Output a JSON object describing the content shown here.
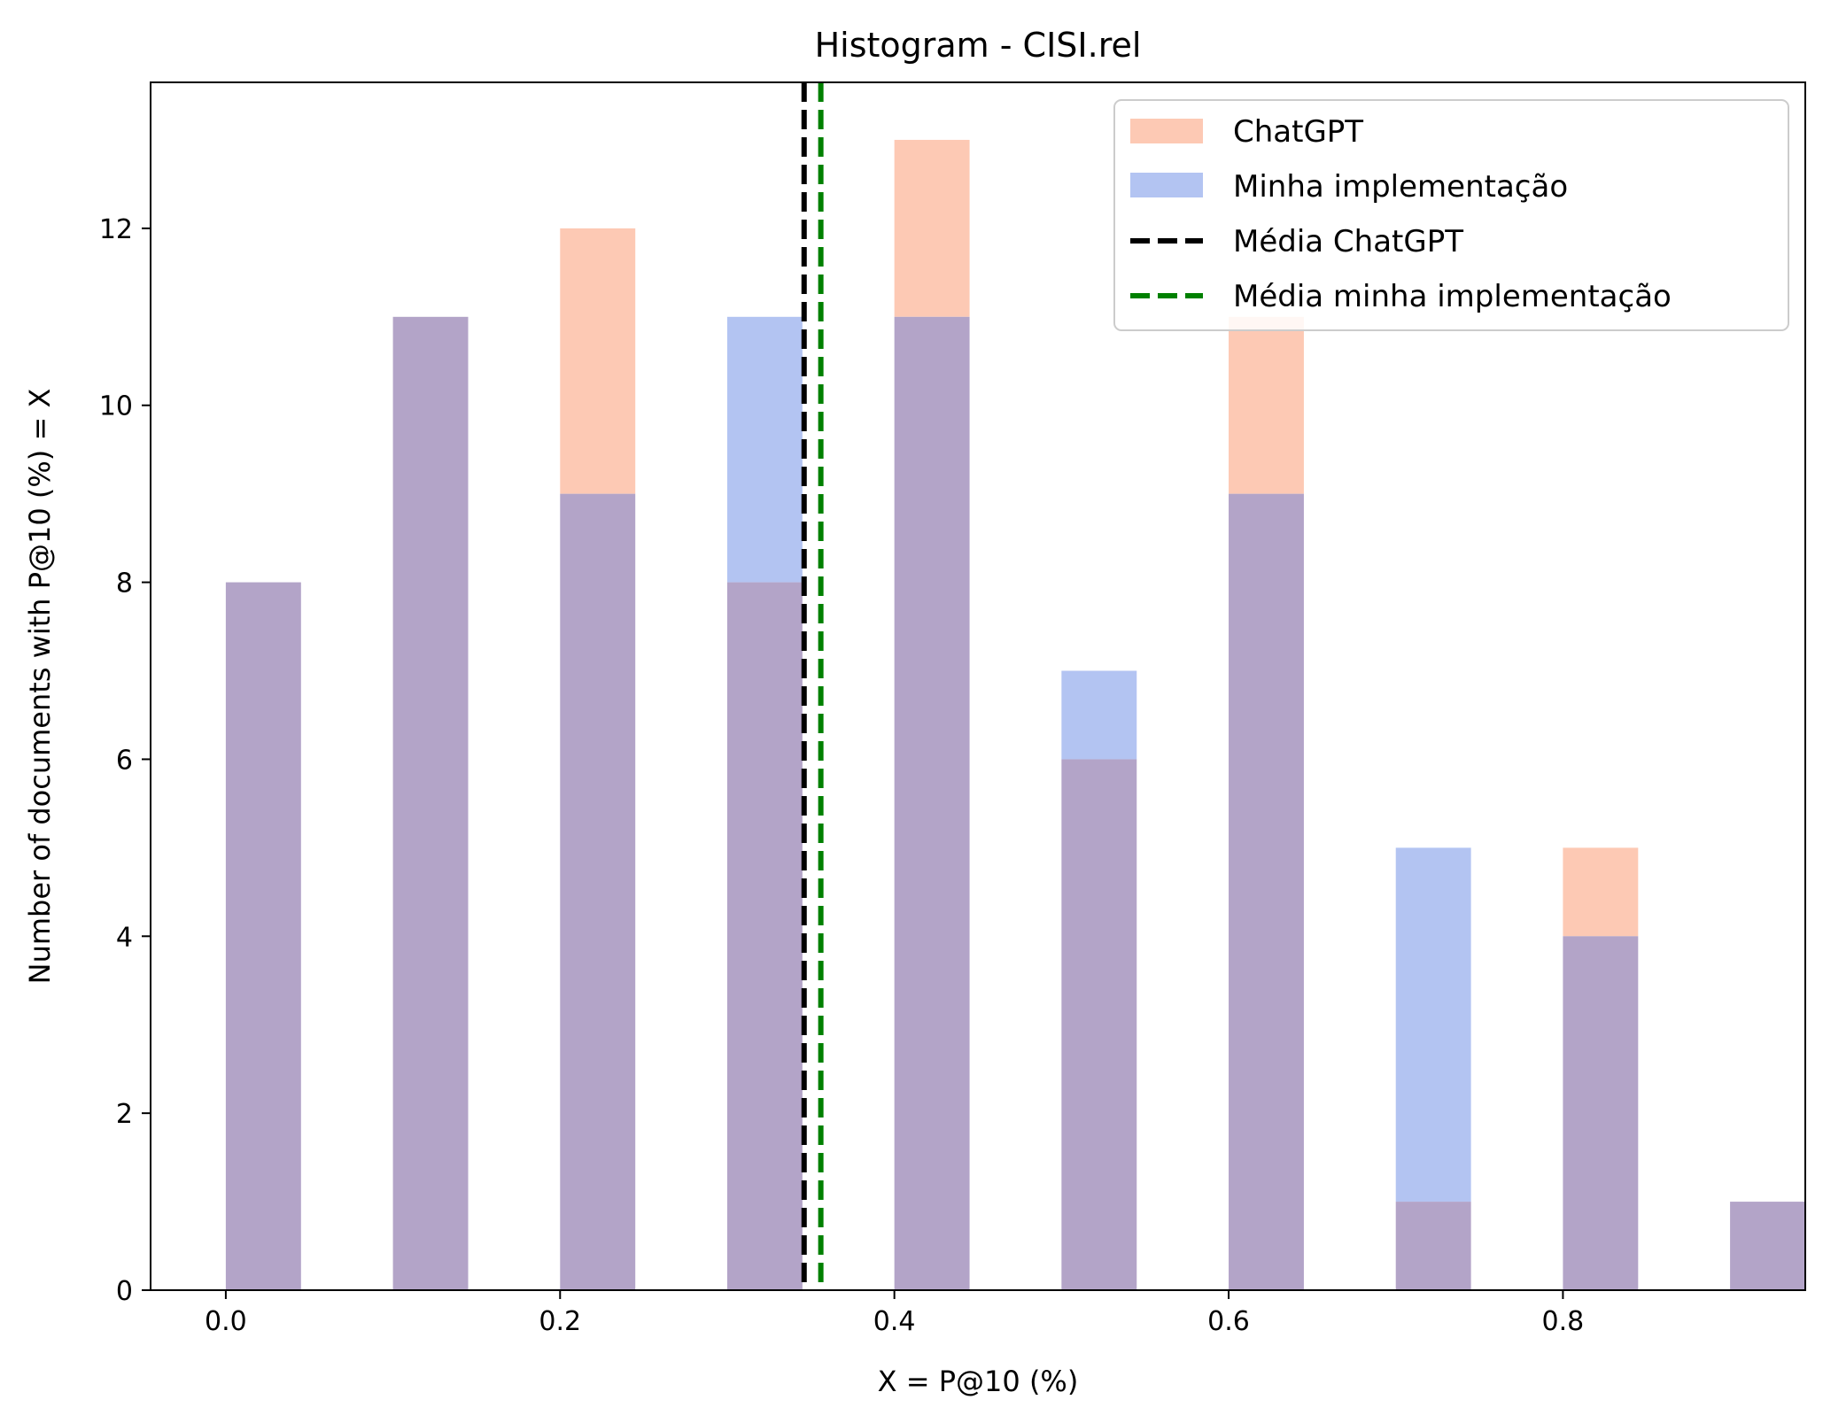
{
  "chart_data": {
    "type": "bar",
    "title": "Histogram - CISI.rel",
    "xlabel": "X = P@10 (%)",
    "ylabel": "Number of documents with P@10 (%) = X",
    "x": [
      0.0,
      0.1,
      0.2,
      0.3,
      0.4,
      0.5,
      0.6,
      0.7,
      0.8,
      0.9
    ],
    "bar_width": 0.045,
    "series": [
      {
        "name": "ChatGPT",
        "values": [
          8,
          11,
          12,
          8,
          13,
          6,
          11,
          1,
          5,
          1
        ],
        "color": "#fdc9b4"
      },
      {
        "name": "Minha implementação",
        "values": [
          8,
          11,
          9,
          11,
          11,
          7,
          9,
          5,
          4,
          1
        ],
        "color": "#b3c4f2"
      }
    ],
    "overlap_color": "#b3a4c8",
    "mean_lines": [
      {
        "name": "Média ChatGPT",
        "x": 0.346,
        "color": "#000000",
        "style": "dashed"
      },
      {
        "name": "Média minha implementação",
        "x": 0.356,
        "color": "#008000",
        "style": "dashed"
      }
    ],
    "xlim": [
      -0.045,
      0.945
    ],
    "ylim": [
      0,
      13.65
    ],
    "xticks": [
      0.0,
      0.2,
      0.4,
      0.6,
      0.8
    ],
    "xtick_labels": [
      "0.0",
      "0.2",
      "0.4",
      "0.6",
      "0.8"
    ],
    "yticks": [
      0,
      2,
      4,
      6,
      8,
      10,
      12
    ],
    "ytick_labels": [
      "0",
      "2",
      "4",
      "6",
      "8",
      "10",
      "12"
    ],
    "grid": false,
    "legend_position": "top-right"
  }
}
